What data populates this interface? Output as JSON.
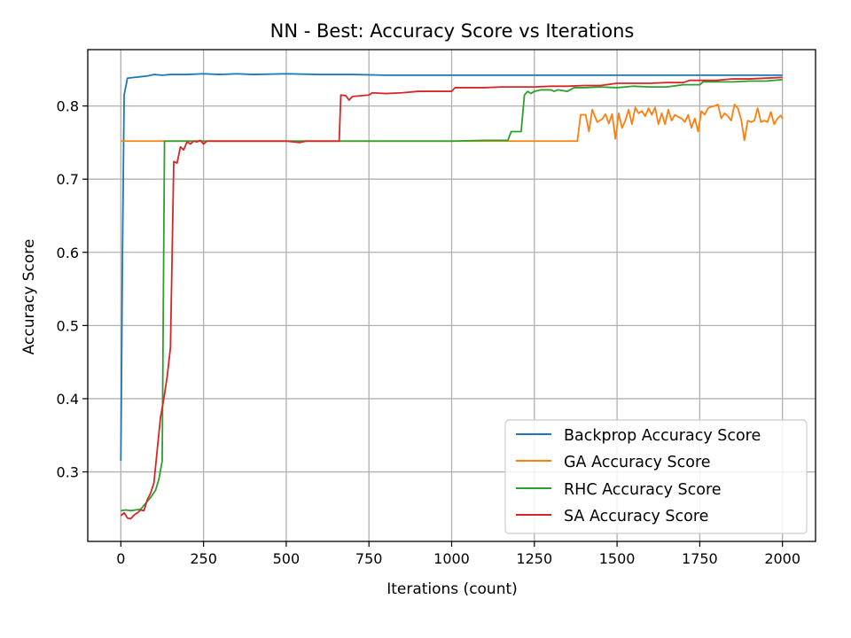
{
  "chart_data": {
    "type": "line",
    "title": "NN - Best: Accuracy Score vs Iterations",
    "xlabel": "Iterations (count)",
    "ylabel": "Accuracy Score",
    "xlim": [
      -100,
      2100
    ],
    "ylim": [
      0.205,
      0.877
    ],
    "xticks": [
      0,
      250,
      500,
      750,
      1000,
      1250,
      1500,
      1750,
      2000
    ],
    "xtick_labels": [
      "0",
      "250",
      "500",
      "750",
      "1000",
      "1250",
      "1500",
      "1750",
      "2000"
    ],
    "yticks": [
      0.3,
      0.4,
      0.5,
      0.6,
      0.7,
      0.8
    ],
    "ytick_labels": [
      "0.3",
      "0.4",
      "0.5",
      "0.6",
      "0.7",
      "0.8"
    ],
    "grid": true,
    "legend_position": "lower-right",
    "series": [
      {
        "name": "Backprop Accuracy Score",
        "color": "#1f77b4",
        "points": [
          [
            0,
            0.315
          ],
          [
            5,
            0.6
          ],
          [
            10,
            0.815
          ],
          [
            20,
            0.838
          ],
          [
            40,
            0.839
          ],
          [
            60,
            0.84
          ],
          [
            80,
            0.841
          ],
          [
            100,
            0.843
          ],
          [
            125,
            0.842
          ],
          [
            150,
            0.843
          ],
          [
            200,
            0.843
          ],
          [
            250,
            0.844
          ],
          [
            300,
            0.843
          ],
          [
            350,
            0.844
          ],
          [
            400,
            0.843
          ],
          [
            500,
            0.844
          ],
          [
            600,
            0.843
          ],
          [
            700,
            0.843
          ],
          [
            800,
            0.842
          ],
          [
            900,
            0.842
          ],
          [
            1000,
            0.842
          ],
          [
            1100,
            0.842
          ],
          [
            1200,
            0.842
          ],
          [
            1300,
            0.842
          ],
          [
            1400,
            0.842
          ],
          [
            1500,
            0.842
          ],
          [
            1600,
            0.842
          ],
          [
            1700,
            0.842
          ],
          [
            1800,
            0.842
          ],
          [
            1900,
            0.842
          ],
          [
            2000,
            0.842
          ]
        ]
      },
      {
        "name": "GA Accuracy Score",
        "color": "#ff7f0e",
        "points": [
          [
            0,
            0.752
          ],
          [
            100,
            0.752
          ],
          [
            500,
            0.752
          ],
          [
            1000,
            0.752
          ],
          [
            1200,
            0.752
          ],
          [
            1380,
            0.752
          ],
          [
            1390,
            0.788
          ],
          [
            1405,
            0.788
          ],
          [
            1415,
            0.765
          ],
          [
            1425,
            0.795
          ],
          [
            1440,
            0.778
          ],
          [
            1455,
            0.782
          ],
          [
            1465,
            0.789
          ],
          [
            1475,
            0.776
          ],
          [
            1485,
            0.789
          ],
          [
            1495,
            0.755
          ],
          [
            1505,
            0.79
          ],
          [
            1515,
            0.77
          ],
          [
            1525,
            0.78
          ],
          [
            1535,
            0.795
          ],
          [
            1545,
            0.775
          ],
          [
            1555,
            0.798
          ],
          [
            1565,
            0.79
          ],
          [
            1575,
            0.793
          ],
          [
            1585,
            0.786
          ],
          [
            1595,
            0.797
          ],
          [
            1605,
            0.788
          ],
          [
            1615,
            0.798
          ],
          [
            1625,
            0.775
          ],
          [
            1635,
            0.79
          ],
          [
            1645,
            0.775
          ],
          [
            1655,
            0.795
          ],
          [
            1665,
            0.78
          ],
          [
            1675,
            0.788
          ],
          [
            1685,
            0.785
          ],
          [
            1695,
            0.783
          ],
          [
            1705,
            0.778
          ],
          [
            1715,
            0.788
          ],
          [
            1725,
            0.77
          ],
          [
            1735,
            0.783
          ],
          [
            1745,
            0.765
          ],
          [
            1755,
            0.793
          ],
          [
            1765,
            0.788
          ],
          [
            1775,
            0.797
          ],
          [
            1785,
            0.799
          ],
          [
            1795,
            0.8
          ],
          [
            1805,
            0.802
          ],
          [
            1815,
            0.783
          ],
          [
            1825,
            0.79
          ],
          [
            1835,
            0.786
          ],
          [
            1845,
            0.78
          ],
          [
            1855,
            0.802
          ],
          [
            1865,
            0.797
          ],
          [
            1875,
            0.782
          ],
          [
            1885,
            0.753
          ],
          [
            1895,
            0.78
          ],
          [
            1905,
            0.778
          ],
          [
            1915,
            0.78
          ],
          [
            1925,
            0.797
          ],
          [
            1935,
            0.778
          ],
          [
            1945,
            0.78
          ],
          [
            1955,
            0.778
          ],
          [
            1965,
            0.792
          ],
          [
            1975,
            0.775
          ],
          [
            1985,
            0.783
          ],
          [
            1995,
            0.787
          ],
          [
            2000,
            0.783
          ]
        ]
      },
      {
        "name": "RHC Accuracy Score",
        "color": "#2ca02c",
        "points": [
          [
            0,
            0.247
          ],
          [
            15,
            0.248
          ],
          [
            30,
            0.247
          ],
          [
            45,
            0.248
          ],
          [
            60,
            0.249
          ],
          [
            75,
            0.257
          ],
          [
            90,
            0.265
          ],
          [
            105,
            0.275
          ],
          [
            115,
            0.29
          ],
          [
            125,
            0.315
          ],
          [
            132,
            0.752
          ],
          [
            150,
            0.752
          ],
          [
            250,
            0.752
          ],
          [
            500,
            0.752
          ],
          [
            750,
            0.752
          ],
          [
            1000,
            0.752
          ],
          [
            1100,
            0.753
          ],
          [
            1170,
            0.753
          ],
          [
            1180,
            0.765
          ],
          [
            1210,
            0.765
          ],
          [
            1220,
            0.815
          ],
          [
            1230,
            0.82
          ],
          [
            1240,
            0.817
          ],
          [
            1250,
            0.82
          ],
          [
            1260,
            0.821
          ],
          [
            1270,
            0.822
          ],
          [
            1300,
            0.822
          ],
          [
            1310,
            0.82
          ],
          [
            1320,
            0.822
          ],
          [
            1350,
            0.82
          ],
          [
            1370,
            0.825
          ],
          [
            1400,
            0.825
          ],
          [
            1450,
            0.826
          ],
          [
            1500,
            0.825
          ],
          [
            1550,
            0.827
          ],
          [
            1600,
            0.826
          ],
          [
            1650,
            0.826
          ],
          [
            1700,
            0.829
          ],
          [
            1750,
            0.829
          ],
          [
            1760,
            0.833
          ],
          [
            1800,
            0.833
          ],
          [
            1850,
            0.833
          ],
          [
            1900,
            0.834
          ],
          [
            1950,
            0.834
          ],
          [
            2000,
            0.836
          ]
        ]
      },
      {
        "name": "SA Accuracy Score",
        "color": "#d62728",
        "points": [
          [
            0,
            0.24
          ],
          [
            10,
            0.244
          ],
          [
            20,
            0.237
          ],
          [
            30,
            0.236
          ],
          [
            40,
            0.241
          ],
          [
            50,
            0.244
          ],
          [
            60,
            0.248
          ],
          [
            70,
            0.247
          ],
          [
            80,
            0.262
          ],
          [
            90,
            0.271
          ],
          [
            100,
            0.285
          ],
          [
            110,
            0.33
          ],
          [
            120,
            0.375
          ],
          [
            130,
            0.4
          ],
          [
            140,
            0.43
          ],
          [
            150,
            0.47
          ],
          [
            160,
            0.724
          ],
          [
            170,
            0.722
          ],
          [
            180,
            0.744
          ],
          [
            190,
            0.74
          ],
          [
            200,
            0.751
          ],
          [
            210,
            0.748
          ],
          [
            220,
            0.752
          ],
          [
            230,
            0.751
          ],
          [
            240,
            0.753
          ],
          [
            250,
            0.748
          ],
          [
            260,
            0.752
          ],
          [
            300,
            0.752
          ],
          [
            400,
            0.752
          ],
          [
            500,
            0.752
          ],
          [
            540,
            0.75
          ],
          [
            560,
            0.752
          ],
          [
            660,
            0.752
          ],
          [
            665,
            0.815
          ],
          [
            680,
            0.814
          ],
          [
            690,
            0.808
          ],
          [
            700,
            0.813
          ],
          [
            750,
            0.815
          ],
          [
            760,
            0.818
          ],
          [
            800,
            0.817
          ],
          [
            850,
            0.818
          ],
          [
            900,
            0.82
          ],
          [
            950,
            0.82
          ],
          [
            1000,
            0.82
          ],
          [
            1010,
            0.825
          ],
          [
            1050,
            0.825
          ],
          [
            1100,
            0.825
          ],
          [
            1150,
            0.826
          ],
          [
            1200,
            0.826
          ],
          [
            1250,
            0.826
          ],
          [
            1300,
            0.827
          ],
          [
            1350,
            0.827
          ],
          [
            1400,
            0.828
          ],
          [
            1450,
            0.828
          ],
          [
            1500,
            0.831
          ],
          [
            1550,
            0.831
          ],
          [
            1600,
            0.831
          ],
          [
            1650,
            0.832
          ],
          [
            1700,
            0.832
          ],
          [
            1720,
            0.835
          ],
          [
            1750,
            0.835
          ],
          [
            1800,
            0.835
          ],
          [
            1850,
            0.837
          ],
          [
            1900,
            0.837
          ],
          [
            1950,
            0.838
          ],
          [
            2000,
            0.839
          ]
        ]
      }
    ]
  }
}
